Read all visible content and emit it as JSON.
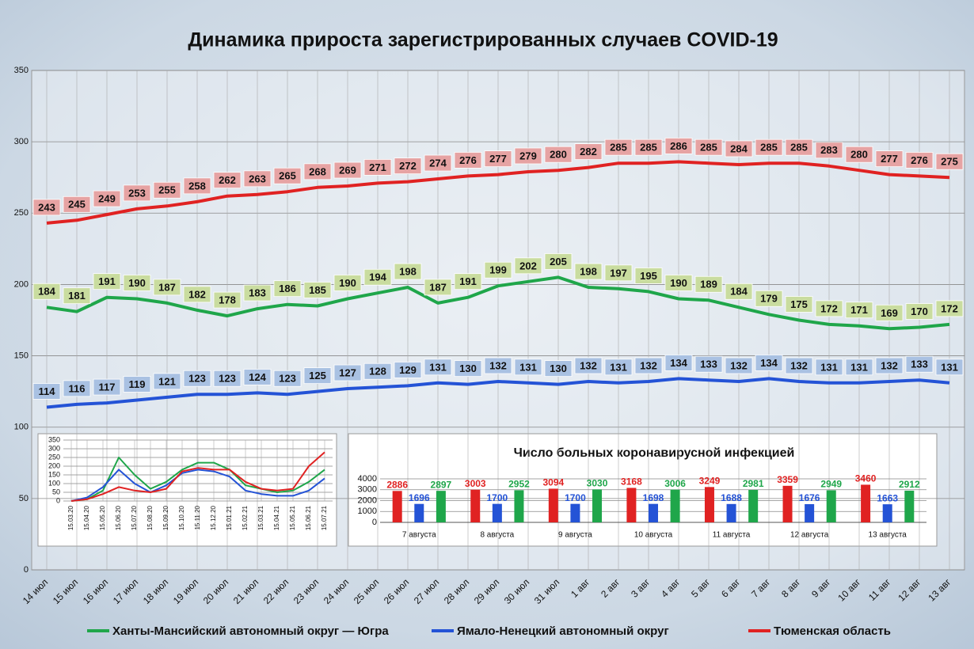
{
  "chart_data": [
    {
      "type": "line",
      "title": "Динамика прироста зарегистрированных случаев COVID-19",
      "categories": [
        "14 июл",
        "15 июл",
        "16 июл",
        "17 июл",
        "18 июл",
        "19 июл",
        "20 июл",
        "21 июл",
        "22 июл",
        "23 июл",
        "24 июл",
        "25 июл",
        "26 июл",
        "27 июл",
        "28 июл",
        "29 июл",
        "30 июл",
        "31 июл",
        "1 авг",
        "2 авг",
        "3 авг",
        "4 авг",
        "5 авг",
        "6 авг",
        "7 авг",
        "8 авг",
        "9 авг",
        "10 авг",
        "11 авг",
        "12 авг",
        "13 авг"
      ],
      "series": [
        {
          "name": "Ханты-Мансийский автономный округ — Югра",
          "color": "#1fa64a",
          "label_color": "#c9dc9f",
          "values": [
            184,
            181,
            191,
            190,
            187,
            182,
            178,
            183,
            186,
            185,
            190,
            194,
            198,
            187,
            191,
            199,
            202,
            205,
            198,
            197,
            195,
            190,
            189,
            184,
            179,
            175,
            172,
            171,
            169,
            170,
            172
          ]
        },
        {
          "name": "Ямало-Ненецкий автономный округ",
          "color": "#2453d6",
          "label_color": "#a9c1e2",
          "values": [
            114,
            116,
            117,
            119,
            121,
            123,
            123,
            124,
            123,
            125,
            127,
            128,
            129,
            131,
            130,
            132,
            131,
            130,
            132,
            131,
            132,
            134,
            133,
            132,
            134,
            132,
            131,
            131,
            132,
            133,
            131
          ]
        },
        {
          "name": "Тюменская область",
          "color": "#e02222",
          "label_color": "#e6a3a3",
          "values": [
            243,
            245,
            249,
            253,
            255,
            258,
            262,
            263,
            265,
            268,
            269,
            271,
            272,
            274,
            276,
            277,
            279,
            280,
            282,
            285,
            285,
            286,
            285,
            284,
            285,
            285,
            283,
            280,
            277,
            276,
            275
          ]
        }
      ],
      "ylim": [
        0,
        350
      ],
      "yticks": [
        0,
        50,
        100,
        150,
        200,
        250,
        300,
        350
      ],
      "grid": true,
      "data_labels": true,
      "legend": "bottom"
    },
    {
      "type": "line",
      "categories": [
        "15.03.20",
        "15.04.20",
        "15.05.20",
        "15.06.20",
        "15.07.20",
        "15.08.20",
        "15.09.20",
        "15.10.20",
        "15.11.20",
        "15.12.20",
        "15.01.21",
        "15.02.21",
        "15.03.21",
        "15.04.21",
        "15.05.21",
        "15.06.21",
        "15.07.21"
      ],
      "series": [
        {
          "color": "#1fa64a",
          "values": [
            0,
            10,
            60,
            250,
            150,
            70,
            110,
            180,
            220,
            220,
            180,
            90,
            70,
            50,
            60,
            110,
            180
          ]
        },
        {
          "color": "#2453d6",
          "values": [
            0,
            20,
            80,
            180,
            100,
            50,
            90,
            160,
            180,
            170,
            140,
            60,
            40,
            30,
            30,
            60,
            130
          ]
        },
        {
          "color": "#e02222",
          "values": [
            0,
            10,
            40,
            80,
            60,
            50,
            70,
            170,
            190,
            180,
            180,
            110,
            70,
            60,
            70,
            200,
            280
          ]
        }
      ],
      "ylim": [
        0,
        350
      ],
      "yticks": [
        0,
        50,
        100,
        150,
        200,
        250,
        300,
        350
      ],
      "grid": true
    },
    {
      "type": "bar",
      "title": "Число больных коронавирусной инфекцией",
      "categories": [
        "7 августа",
        "8 августа",
        "9 августа",
        "10 августа",
        "11 августа",
        "12 августа",
        "13 августа"
      ],
      "series": [
        {
          "color": "#e02222",
          "values": [
            2886,
            3003,
            3094,
            3168,
            3249,
            3359,
            3460
          ]
        },
        {
          "color": "#2453d6",
          "values": [
            1696,
            1700,
            1700,
            1698,
            1688,
            1676,
            1663
          ]
        },
        {
          "color": "#1fa64a",
          "values": [
            2897,
            2952,
            3030,
            3006,
            2981,
            2949,
            2912
          ]
        }
      ],
      "ylim": [
        0,
        4000
      ],
      "yticks": [
        0,
        1000,
        2000,
        3000,
        4000
      ],
      "grid": true,
      "data_labels": true
    }
  ]
}
